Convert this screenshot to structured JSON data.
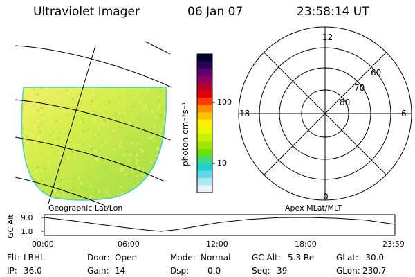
{
  "header": {
    "instrument": "Ultraviolet Imager",
    "date": "06 Jan 07",
    "time": "23:58:14 UT"
  },
  "colorbar": {
    "unit_label": "photon cm⁻²s⁻¹",
    "ticks": [
      "100",
      "10"
    ],
    "colors": [
      "#000033",
      "#2a0050",
      "#5a0070",
      "#8a0060",
      "#b80030",
      "#e00000",
      "#ff3a00",
      "#ff8c00",
      "#ffc000",
      "#fff000",
      "#e8f800",
      "#c8f000",
      "#a0e800",
      "#70e000",
      "#40d880",
      "#20d0d0",
      "#60d8e8",
      "#b0e8f0",
      "#e8f4f8"
    ]
  },
  "left_panel": {
    "caption": "Geographic Lat/Lon"
  },
  "right_panel": {
    "caption": "Apex MLat/MLT",
    "mlt_labels": {
      "top": "12",
      "left": "18",
      "right": "6",
      "bottom": "0"
    },
    "lat_labels": [
      "60",
      "70",
      "80"
    ]
  },
  "timeline": {
    "ylabel": "GC Alt",
    "y_ticks": [
      "9.0",
      "1.8"
    ],
    "x_ticks": [
      "00:00",
      "06:00",
      "12:00",
      "18:00",
      "23:59"
    ],
    "chart_data": {
      "type": "line",
      "x_hours": [
        0,
        2,
        4,
        6,
        7,
        8,
        9,
        10,
        12,
        14,
        16,
        18,
        20,
        22,
        24
      ],
      "y_re": [
        9.0,
        7.2,
        5.2,
        3.3,
        2.4,
        1.8,
        2.6,
        3.8,
        6.4,
        8.0,
        8.9,
        9.0,
        8.6,
        7.6,
        5.4
      ]
    }
  },
  "footer": {
    "row1": [
      {
        "label": "Flt:",
        "value": "LBHL"
      },
      {
        "label": "Door:",
        "value": "Open"
      },
      {
        "label": "Mode:",
        "value": "Normal"
      },
      {
        "label": "GC Alt:",
        "value": "5.3 Re"
      },
      {
        "label": "GLat:",
        "value": "-30.0"
      }
    ],
    "row2": [
      {
        "label": "IP:",
        "value": "36.0"
      },
      {
        "label": "Gain:",
        "value": "14"
      },
      {
        "label": "Dsp:",
        "value": "0.0"
      },
      {
        "label": "Seq:",
        "value": "39"
      },
      {
        "label": "GLon:",
        "value": "230.7"
      }
    ]
  }
}
